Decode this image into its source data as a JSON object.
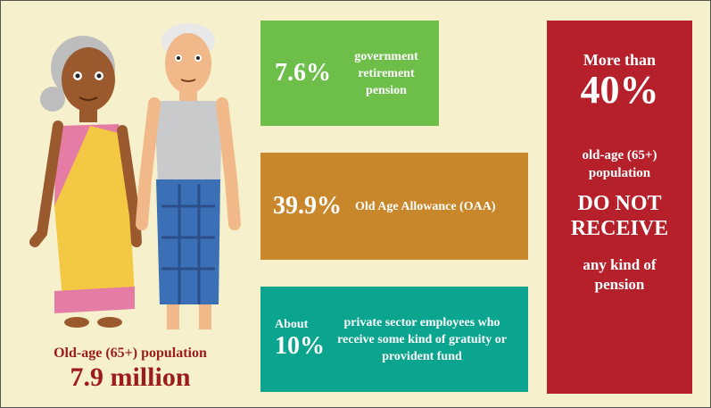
{
  "population": {
    "label": "Old-age (65+) population",
    "value": "7.9 million"
  },
  "boxes": [
    {
      "value": "7.6%",
      "label": "government retirement pension"
    },
    {
      "value": "39.9%",
      "label": "Old Age Allowance (OAA)"
    },
    {
      "prefix": "About",
      "value": "10%",
      "label": "private sector employees who receive some kind of gratuity or provident fund"
    }
  ],
  "callout": {
    "prefix": "More than",
    "value": "40%",
    "group": "old-age (65+) population",
    "emphasis": "DO NOT RECEIVE",
    "suffix": "any kind of pension"
  }
}
